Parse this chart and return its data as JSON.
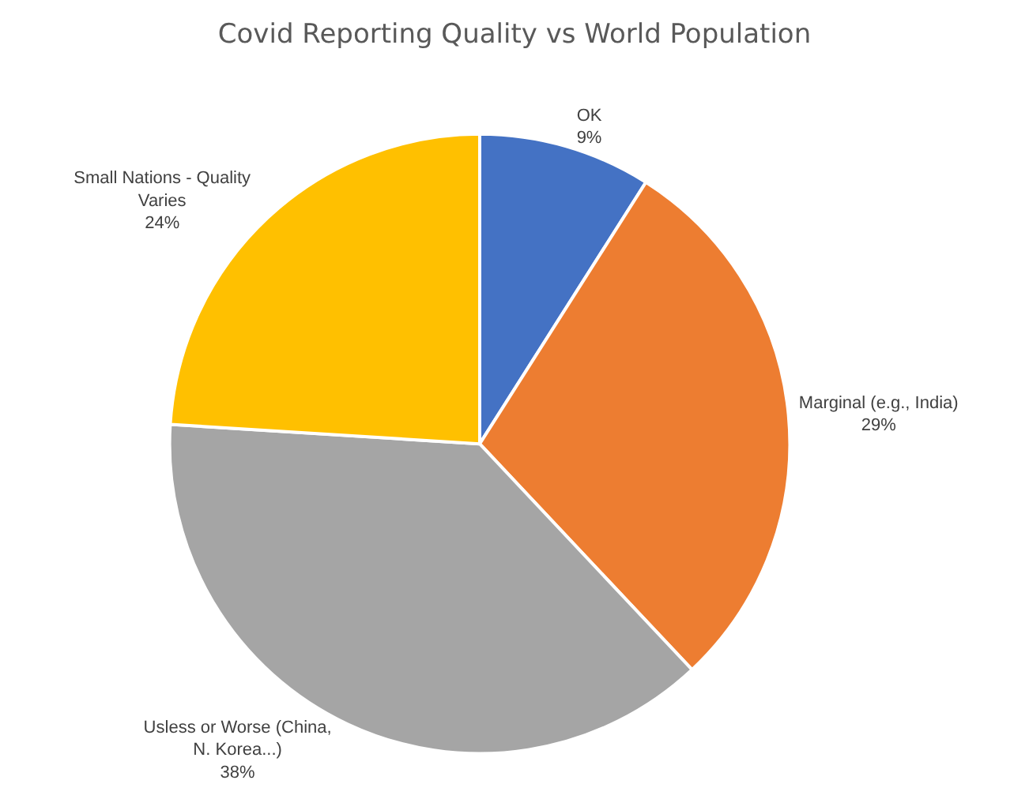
{
  "chart_data": {
    "type": "pie",
    "title": "Covid Reporting Quality vs World Population",
    "categories": [
      "OK",
      "Marginal (e.g., India)",
      "Usless or Worse (China, N. Korea...)",
      "Small Nations - Quality Varies"
    ],
    "values": [
      9,
      29,
      38,
      24
    ],
    "value_labels": [
      "9%",
      "29%",
      "38%",
      "24%"
    ],
    "colors": [
      "#4472c4",
      "#ed7d31",
      "#a5a5a5",
      "#ffc000"
    ],
    "legend": false
  }
}
